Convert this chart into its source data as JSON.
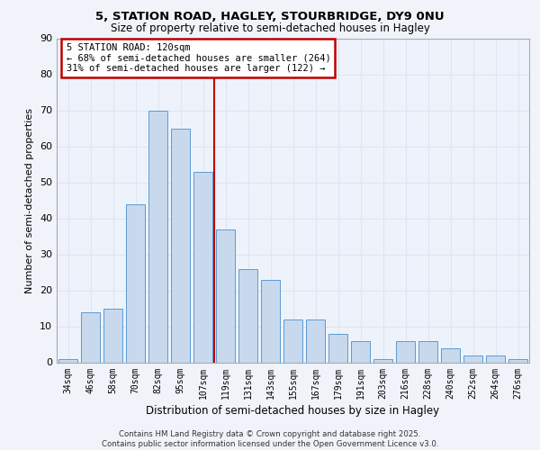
{
  "title1": "5, STATION ROAD, HAGLEY, STOURBRIDGE, DY9 0NU",
  "title2": "Size of property relative to semi-detached houses in Hagley",
  "xlabel": "Distribution of semi-detached houses by size in Hagley",
  "ylabel": "Number of semi-detached properties",
  "categories": [
    "34sqm",
    "46sqm",
    "58sqm",
    "70sqm",
    "82sqm",
    "95sqm",
    "107sqm",
    "119sqm",
    "131sqm",
    "143sqm",
    "155sqm",
    "167sqm",
    "179sqm",
    "191sqm",
    "203sqm",
    "216sqm",
    "228sqm",
    "240sqm",
    "252sqm",
    "264sqm",
    "276sqm"
  ],
  "values": [
    1,
    14,
    15,
    44,
    70,
    65,
    53,
    37,
    26,
    23,
    12,
    12,
    8,
    6,
    1,
    6,
    6,
    4,
    2,
    2,
    1
  ],
  "bar_color": "#c8d9ed",
  "bar_edge_color": "#5b9bd5",
  "grid_color": "#dce6f1",
  "background_color": "#f0f4fa",
  "plot_bg_color": "#eef3fb",
  "vline_bin_index": 7,
  "annotation_title": "5 STATION ROAD: 120sqm",
  "annotation_line1": "← 68% of semi-detached houses are smaller (264)",
  "annotation_line2": "31% of semi-detached houses are larger (122) →",
  "vline_color": "#c00000",
  "annotation_box_color": "#c00000",
  "ylim": [
    0,
    90
  ],
  "yticks": [
    0,
    10,
    20,
    30,
    40,
    50,
    60,
    70,
    80,
    90
  ],
  "footer1": "Contains HM Land Registry data © Crown copyright and database right 2025.",
  "footer2": "Contains public sector information licensed under the Open Government Licence v3.0."
}
